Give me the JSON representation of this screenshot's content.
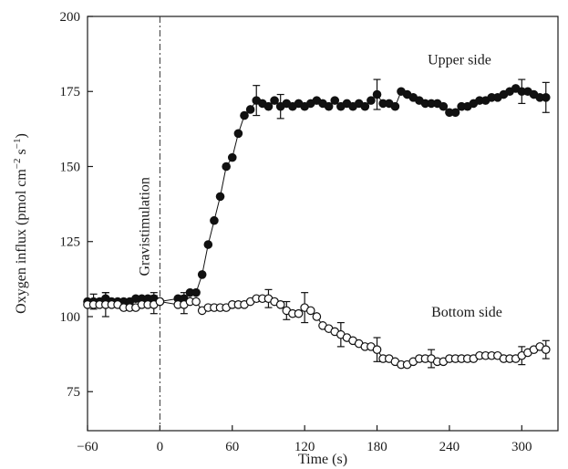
{
  "chart_data": {
    "type": "scatter",
    "xlabel": "Time (s)",
    "ylabel_main": "Oxygen influx (pmol cm",
    "ylabel_exp1": "−2",
    "ylabel_mid": " s",
    "ylabel_exp2": "−1",
    "ylabel_end": ")",
    "xlim": [
      -60,
      330
    ],
    "ylim": [
      62,
      200
    ],
    "xticks": [
      -60,
      0,
      60,
      120,
      180,
      240,
      300
    ],
    "xtick_labels": [
      "−60",
      "0",
      "60",
      "120",
      "180",
      "240",
      "300"
    ],
    "yticks": [
      75,
      100,
      125,
      150,
      175,
      200
    ],
    "ytick_labels": [
      "75",
      "100",
      "125",
      "150",
      "175",
      "200"
    ],
    "grid": false,
    "event_line_x": 0,
    "event_label": "Gravistimulation",
    "series": [
      {
        "name": "Upper side",
        "marker": "filled-circle",
        "color": "#111111",
        "x": [
          -60,
          -55,
          -50,
          -45,
          -40,
          -35,
          -30,
          -25,
          -20,
          -15,
          -10,
          -5,
          0,
          15,
          20,
          25,
          30,
          35,
          40,
          45,
          50,
          55,
          60,
          65,
          70,
          75,
          80,
          85,
          90,
          95,
          100,
          105,
          110,
          115,
          120,
          125,
          130,
          135,
          140,
          145,
          150,
          155,
          160,
          165,
          170,
          175,
          180,
          185,
          190,
          195,
          200,
          205,
          210,
          215,
          220,
          225,
          230,
          235,
          240,
          245,
          250,
          255,
          260,
          265,
          270,
          275,
          280,
          285,
          290,
          295,
          300,
          305,
          310,
          315,
          320
        ],
        "y": [
          105,
          105,
          105,
          106,
          105,
          105,
          105,
          105,
          106,
          106,
          106,
          106,
          105,
          106,
          106,
          108,
          108,
          114,
          124,
          132,
          140,
          150,
          153,
          161,
          167,
          169,
          172,
          171,
          170,
          172,
          170,
          171,
          170,
          171,
          170,
          171,
          172,
          171,
          170,
          172,
          170,
          171,
          170,
          171,
          170,
          172,
          174,
          171,
          171,
          170,
          175,
          174,
          173,
          172,
          171,
          171,
          171,
          170,
          168,
          168,
          170,
          170,
          171,
          172,
          172,
          173,
          173,
          174,
          175,
          176,
          175,
          175,
          174,
          173,
          173
        ],
        "error_x": [
          -55,
          -45,
          -5,
          20,
          80,
          100,
          180,
          300,
          320
        ],
        "error_y": [
          2.5,
          2,
          2,
          2,
          5,
          4,
          5,
          4,
          5
        ]
      },
      {
        "name": "Bottom side",
        "marker": "open-circle",
        "color": "#111111",
        "x": [
          -60,
          -55,
          -50,
          -45,
          -40,
          -35,
          -30,
          -25,
          -20,
          -15,
          -10,
          -5,
          0,
          15,
          20,
          25,
          30,
          35,
          40,
          45,
          50,
          55,
          60,
          65,
          70,
          75,
          80,
          85,
          90,
          95,
          100,
          105,
          110,
          115,
          120,
          125,
          130,
          135,
          140,
          145,
          150,
          155,
          160,
          165,
          170,
          175,
          180,
          185,
          190,
          195,
          200,
          205,
          210,
          215,
          220,
          225,
          230,
          235,
          240,
          245,
          250,
          255,
          260,
          265,
          270,
          275,
          280,
          285,
          290,
          295,
          300,
          305,
          310,
          315,
          320
        ],
        "y": [
          104,
          104,
          104,
          104,
          104,
          104,
          103,
          103,
          103,
          104,
          104,
          104,
          105,
          104,
          104,
          105,
          105,
          102,
          103,
          103,
          103,
          103,
          104,
          104,
          104,
          105,
          106,
          106,
          106,
          105,
          104,
          102,
          101,
          101,
          103,
          102,
          100,
          97,
          96,
          95,
          94,
          93,
          92,
          91,
          90,
          90,
          89,
          86,
          86,
          85,
          84,
          84,
          85,
          86,
          86,
          86,
          85,
          85,
          86,
          86,
          86,
          86,
          86,
          87,
          87,
          87,
          87,
          86,
          86,
          86,
          87,
          88,
          89,
          90,
          89
        ],
        "error_x": [
          -45,
          -5,
          20,
          90,
          105,
          120,
          150,
          180,
          225,
          300,
          320
        ],
        "error_y": [
          4,
          3,
          3,
          3,
          3,
          5,
          4,
          4,
          3,
          3,
          3
        ]
      }
    ]
  },
  "annotations": {
    "upper_label": "Upper side",
    "bottom_label": "Bottom side"
  }
}
